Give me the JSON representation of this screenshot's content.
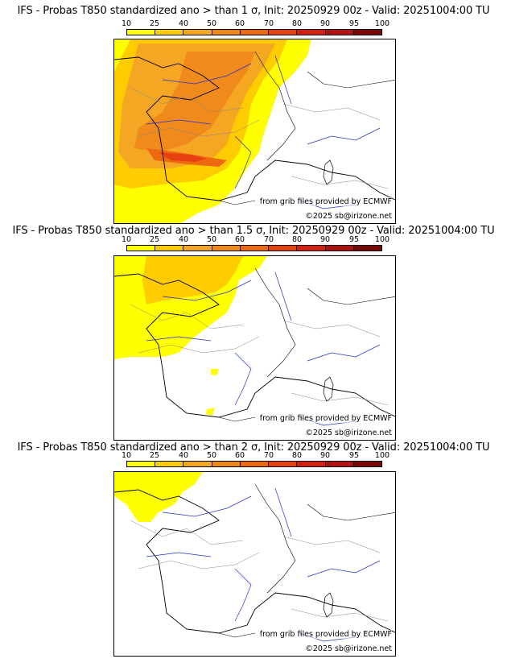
{
  "colorbar": {
    "ticks": [
      "10",
      "25",
      "40",
      "50",
      "60",
      "70",
      "80",
      "90",
      "95",
      "100"
    ],
    "colors": [
      "#ffff00",
      "#ffcc00",
      "#f5a623",
      "#f08a1a",
      "#ee6a10",
      "#e84010",
      "#d42010",
      "#b01010",
      "#7a0808"
    ]
  },
  "panels": [
    {
      "title": "IFS - Probas T850  standardized ano > than 1 σ, Init: 20250929 00z - Valid: 20251004:00 TU",
      "credit_grib": "from grib files provided by ECMWF",
      "credit_copy": "©2025 sb@irizone.net"
    },
    {
      "title": "IFS - Probas T850  standardized ano > than 1.5 σ, Init: 20250929 00z - Valid: 20251004:00 TU",
      "credit_grib": "from grib files provided by ECMWF",
      "credit_copy": "©2025 sb@irizone.net"
    },
    {
      "title": "IFS - Probas T850  standardized ano > than 2 σ, Init: 20250929 00z - Valid: 20251004:00 TU",
      "credit_grib": "from grib files provided by ECMWF",
      "credit_copy": "©2025 sb@irizone.net"
    }
  ]
}
